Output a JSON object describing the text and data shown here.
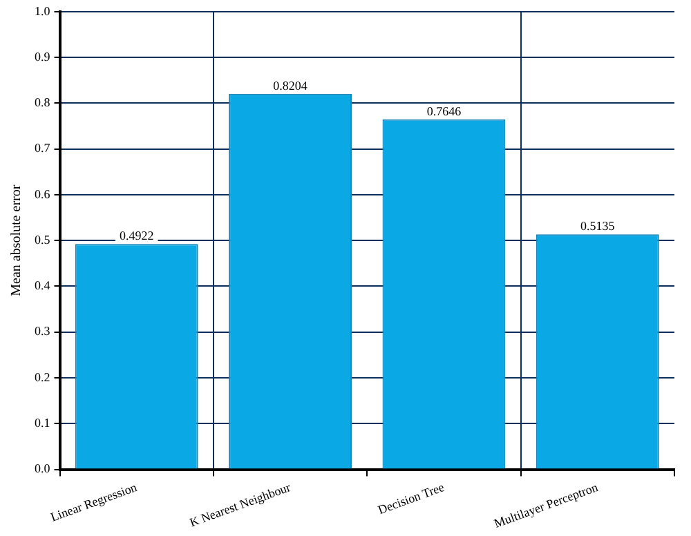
{
  "chart_data": {
    "type": "bar",
    "ylabel": "Mean absolute error",
    "categories": [
      "Linear Regression",
      "K Nearest Neighbour",
      "Decision Tree",
      "Multilayer Perceptron"
    ],
    "values": [
      0.4922,
      0.8204,
      0.7646,
      0.5135
    ],
    "color": "#0aa9e6",
    "data_labels": true,
    "ylim": [
      0,
      1
    ],
    "yticks": [
      {
        "value": 0,
        "label": "0.0"
      },
      {
        "value": 0.1,
        "label": "0.1"
      },
      {
        "value": 0.2,
        "label": "0.2"
      },
      {
        "value": 0.3,
        "label": "0.3"
      },
      {
        "value": 0.4,
        "label": "0.4"
      },
      {
        "value": 0.5,
        "label": "0.5"
      },
      {
        "value": 0.6,
        "label": "0.6"
      },
      {
        "value": 0.7,
        "label": "0.7"
      },
      {
        "value": 0.8,
        "label": "0.8"
      },
      {
        "value": 0.9,
        "label": "0.9"
      },
      {
        "value": 1,
        "label": "1.0"
      }
    ],
    "grid": true,
    "legend": false
  }
}
